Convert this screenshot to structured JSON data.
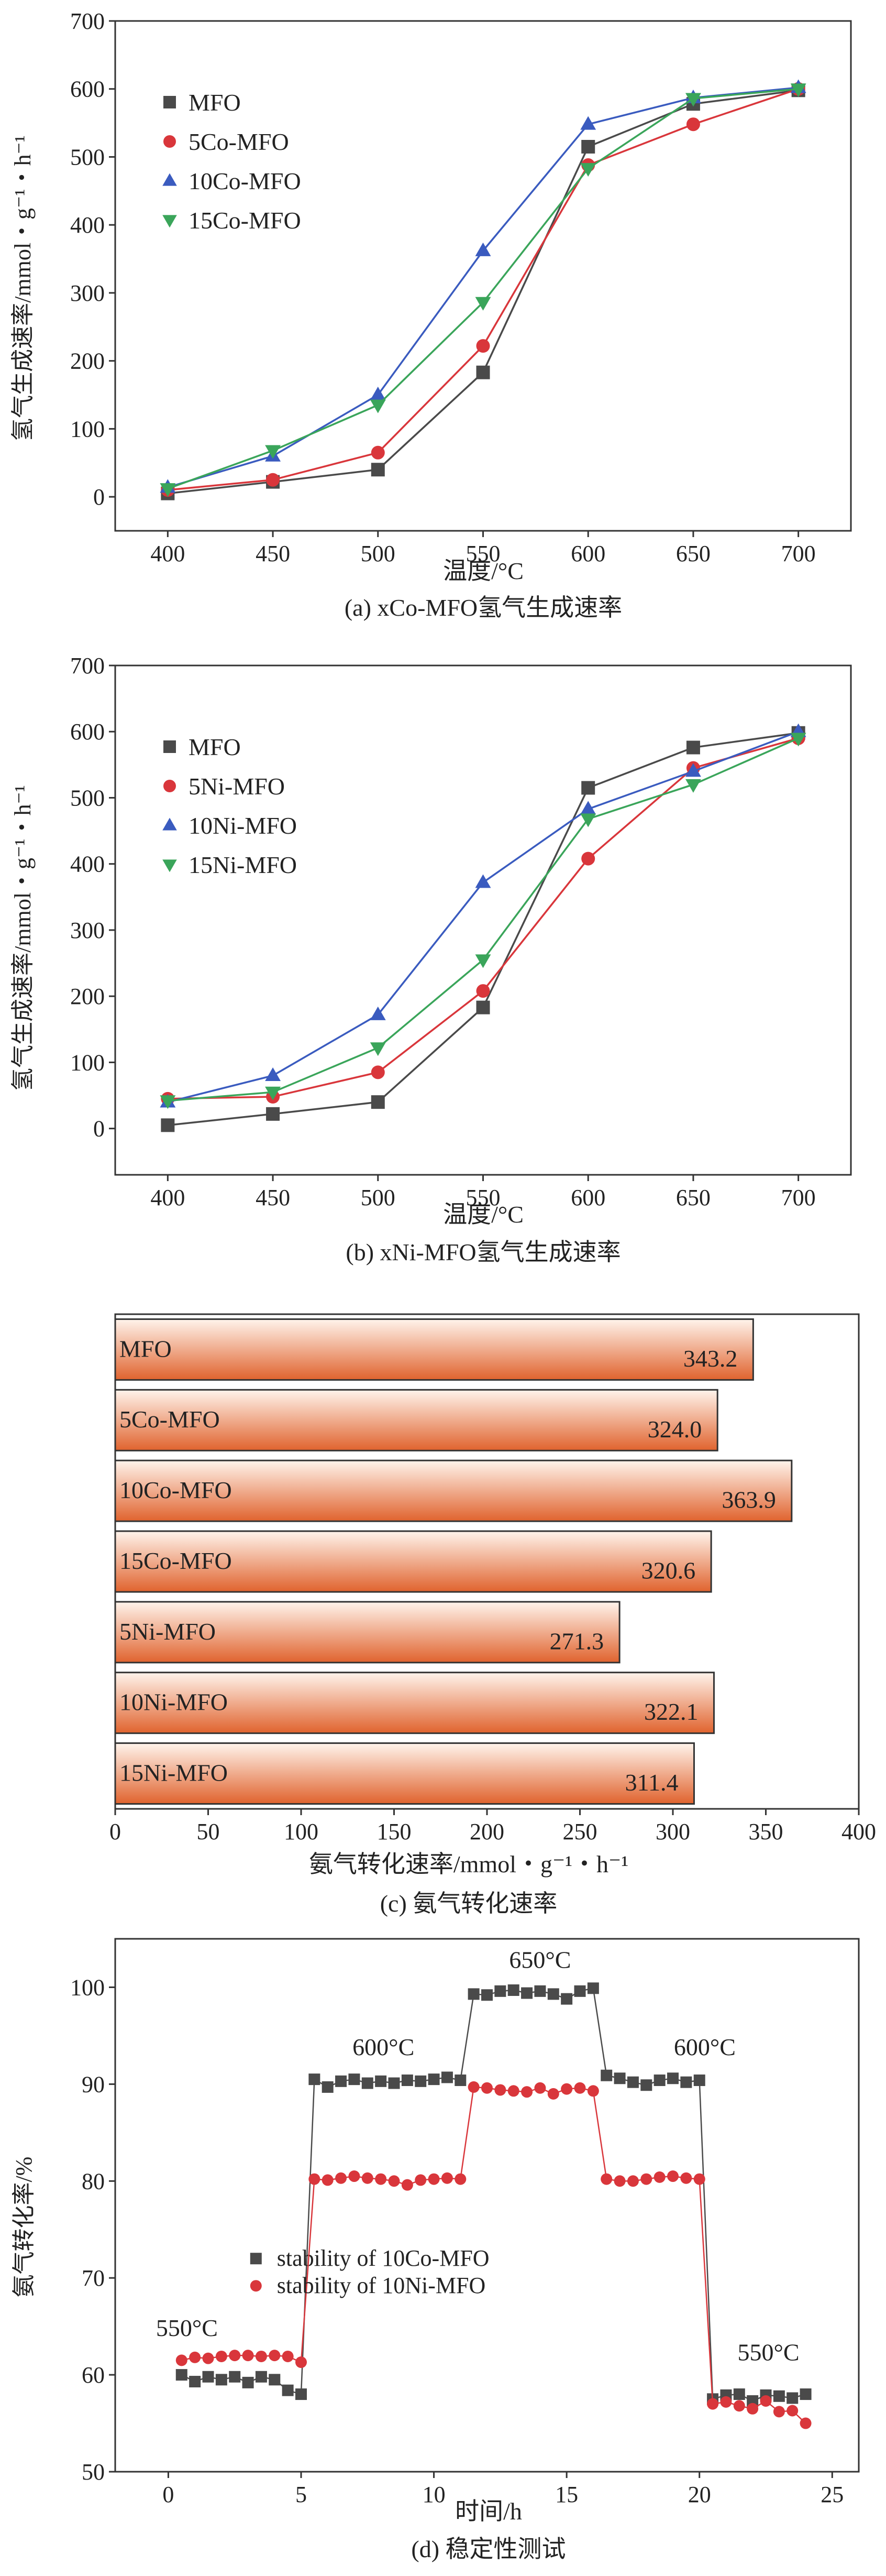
{
  "chart_data": [
    {
      "type": "line",
      "ylabel": "氢气生成速率/mmol・g⁻¹・h⁻¹",
      "xlabel": "温度/°C",
      "caption": "(a) xCo-MFO氢气生成速率",
      "x": [
        400,
        450,
        500,
        550,
        600,
        650,
        700
      ],
      "xticks": [
        "400",
        "450",
        "500",
        "550",
        "600",
        "650",
        "700"
      ],
      "xlim": [
        375,
        725
      ],
      "ylim": [
        -50,
        700
      ],
      "yticks": [
        "0",
        "100",
        "200",
        "300",
        "400",
        "500",
        "600",
        "700"
      ],
      "legend_position": "top-left",
      "series": [
        {
          "name": "MFO",
          "color": "#4a4a4a",
          "marker": "square",
          "values": [
            5,
            22,
            40,
            183,
            515,
            578,
            598
          ]
        },
        {
          "name": "5Co-MFO",
          "color": "#d9363b",
          "marker": "circle",
          "values": [
            10,
            25,
            65,
            222,
            488,
            548,
            600
          ]
        },
        {
          "name": "10Co-MFO",
          "color": "#3a5bbf",
          "marker": "triangle-up",
          "values": [
            14,
            60,
            150,
            362,
            548,
            587,
            602
          ]
        },
        {
          "name": "15Co-MFO",
          "color": "#3aa55a",
          "marker": "triangle-down",
          "values": [
            12,
            68,
            135,
            286,
            483,
            586,
            600
          ]
        }
      ]
    },
    {
      "type": "line",
      "ylabel": "氢气生成速率/mmol・g⁻¹・h⁻¹",
      "xlabel": "温度/°C",
      "caption": "(b) xNi-MFO氢气生成速率",
      "x": [
        400,
        450,
        500,
        550,
        600,
        650,
        700
      ],
      "xticks": [
        "400",
        "450",
        "500",
        "550",
        "600",
        "650",
        "700"
      ],
      "xlim": [
        375,
        725
      ],
      "ylim": [
        -70,
        700
      ],
      "yticks": [
        "0",
        "100",
        "200",
        "300",
        "400",
        "500",
        "600",
        "700"
      ],
      "legend_position": "top-left",
      "series": [
        {
          "name": "MFO",
          "color": "#4a4a4a",
          "marker": "square",
          "values": [
            5,
            22,
            40,
            183,
            515,
            576,
            598
          ]
        },
        {
          "name": "5Ni-MFO",
          "color": "#d9363b",
          "marker": "circle",
          "values": [
            45,
            48,
            85,
            208,
            408,
            545,
            590
          ]
        },
        {
          "name": "10Ni-MFO",
          "color": "#3a5bbf",
          "marker": "triangle-up",
          "values": [
            40,
            80,
            172,
            372,
            483,
            540,
            600
          ]
        },
        {
          "name": "15Ni-MFO",
          "color": "#3aa55a",
          "marker": "triangle-down",
          "values": [
            42,
            55,
            122,
            255,
            468,
            520,
            590
          ]
        }
      ]
    },
    {
      "type": "bar",
      "orientation": "horizontal",
      "xlabel": "氨气转化速率/mmol・g⁻¹・h⁻¹",
      "caption": "(c) 氨气转化速率",
      "categories": [
        "MFO",
        "5Co-MFO",
        "10Co-MFO",
        "15Co-MFO",
        "5Ni-MFO",
        "10Ni-MFO",
        "15Ni-MFO"
      ],
      "values": [
        343.2,
        324.0,
        363.9,
        320.6,
        271.3,
        322.1,
        311.4
      ],
      "value_labels": [
        "343.2",
        "324.0",
        "363.9",
        "320.6",
        "271.3",
        "322.1",
        "311.4"
      ],
      "xlim": [
        0,
        400
      ],
      "xticks": [
        "0",
        "50",
        "100",
        "150",
        "200",
        "250",
        "300",
        "350",
        "400"
      ],
      "bar_gradient": [
        "#fff4ec",
        "#e0632e"
      ]
    },
    {
      "type": "scatter",
      "ylabel": "氨气转化率/%",
      "xlabel": "时间/h",
      "caption": "(d) 稳定性测试",
      "xlim": [
        -2,
        26
      ],
      "ylim": [
        50,
        105
      ],
      "xticks": [
        "0",
        "5",
        "10",
        "15",
        "20",
        "25"
      ],
      "yticks": [
        "50",
        "60",
        "70",
        "80",
        "90",
        "100"
      ],
      "legend_position": "lower-middle",
      "annotations": [
        "550°C",
        "600°C",
        "650°C",
        "600°C",
        "550°C"
      ],
      "series": [
        {
          "name": "stability of 10Co-MFO",
          "color": "#4a4a4a",
          "marker": "square",
          "x": [
            0.5,
            1,
            1.5,
            2,
            2.5,
            3,
            3.5,
            4,
            4.5,
            5,
            5.5,
            6,
            6.5,
            7,
            7.5,
            8,
            8.5,
            9,
            9.5,
            10,
            10.5,
            11,
            11.5,
            12,
            12.5,
            13,
            13.5,
            14,
            14.5,
            15,
            15.5,
            16,
            16.5,
            17,
            17.5,
            18,
            18.5,
            19,
            19.5,
            20,
            20.5,
            21,
            21.5,
            22,
            22.5,
            23,
            23.5,
            24
          ],
          "y": [
            60,
            59.3,
            59.8,
            59.5,
            59.8,
            59.2,
            59.8,
            59.5,
            58.4,
            58,
            90.5,
            89.7,
            90.3,
            90.5,
            90.1,
            90.3,
            90.1,
            90.4,
            90.3,
            90.5,
            90.7,
            90.4,
            99.3,
            99.2,
            99.6,
            99.7,
            99.4,
            99.6,
            99.3,
            98.8,
            99.6,
            99.9,
            90.9,
            90.6,
            90.2,
            89.9,
            90.4,
            90.6,
            90.2,
            90.4,
            57.5,
            57.9,
            58,
            57.3,
            57.9,
            57.8,
            57.6,
            58
          ]
        },
        {
          "name": "stability of 10Ni-MFO",
          "color": "#d9363b",
          "marker": "circle",
          "x": [
            0.5,
            1,
            1.5,
            2,
            2.5,
            3,
            3.5,
            4,
            4.5,
            5,
            5.5,
            6,
            6.5,
            7,
            7.5,
            8,
            8.5,
            9,
            9.5,
            10,
            10.5,
            11,
            11.5,
            12,
            12.5,
            13,
            13.5,
            14,
            14.5,
            15,
            15.5,
            16,
            16.5,
            17,
            17.5,
            18,
            18.5,
            19,
            19.5,
            20,
            20.5,
            21,
            21.5,
            22,
            22.5,
            23,
            23.5,
            24
          ],
          "y": [
            61.5,
            61.8,
            61.7,
            61.9,
            62,
            62,
            61.9,
            62,
            61.9,
            61.3,
            80.2,
            80.1,
            80.3,
            80.5,
            80.3,
            80.2,
            80,
            79.6,
            80.1,
            80.2,
            80.3,
            80.2,
            89.7,
            89.6,
            89.4,
            89.3,
            89.2,
            89.6,
            89,
            89.5,
            89.6,
            89.3,
            80.2,
            80,
            80,
            80.2,
            80.4,
            80.5,
            80.3,
            80.2,
            57,
            57.2,
            56.8,
            56.5,
            57.3,
            56.2,
            56.3,
            55
          ]
        }
      ]
    }
  ]
}
